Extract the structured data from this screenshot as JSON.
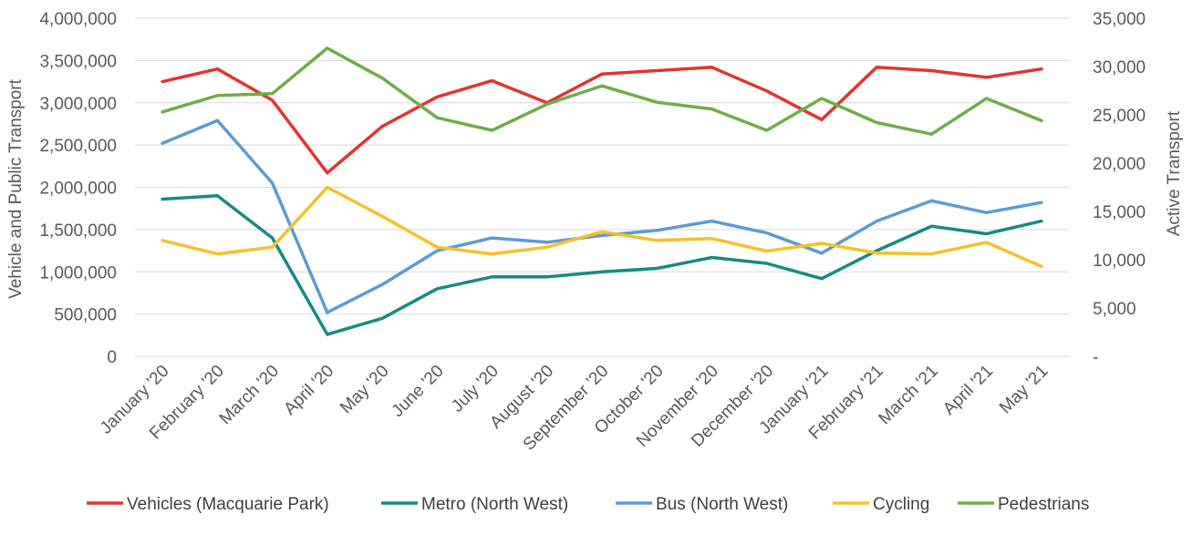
{
  "chart_data": {
    "type": "line",
    "categories": [
      "January '20",
      "February '20",
      "March '20",
      "April '20",
      "May '20",
      "June '20",
      "July '20",
      "August '20",
      "September '20",
      "October '20",
      "November '20",
      "December '20",
      "January '21",
      "February '21",
      "March '21",
      "April '21",
      "May '21"
    ],
    "ylabel": "Vehicle and Public Transport",
    "y2label": "Active Transport",
    "ylim": [
      0,
      4000000
    ],
    "y2lim": [
      0,
      35000
    ],
    "yticks": [
      {
        "value": 0,
        "label": "0"
      },
      {
        "value": 500000,
        "label": "500,000"
      },
      {
        "value": 1000000,
        "label": "1,000,000"
      },
      {
        "value": 1500000,
        "label": "1,500,000"
      },
      {
        "value": 2000000,
        "label": "2,000,000"
      },
      {
        "value": 2500000,
        "label": "2,500,000"
      },
      {
        "value": 3000000,
        "label": "3,000,000"
      },
      {
        "value": 3500000,
        "label": "3,500,000"
      },
      {
        "value": 4000000,
        "label": "4,000,000"
      }
    ],
    "y2ticks": [
      {
        "value": 0,
        "label": "-"
      },
      {
        "value": 5000,
        "label": "5,000"
      },
      {
        "value": 10000,
        "label": "10,000"
      },
      {
        "value": 15000,
        "label": "15,000"
      },
      {
        "value": 20000,
        "label": "20,000"
      },
      {
        "value": 25000,
        "label": "25,000"
      },
      {
        "value": 30000,
        "label": "30,000"
      },
      {
        "value": 35000,
        "label": "35,000"
      }
    ],
    "grid": "horizontal",
    "legend": "bottom",
    "series": [
      {
        "name": "Vehicles (Macquarie Park)",
        "axis": "left",
        "color": "#e03530",
        "values": [
          3250000,
          3400000,
          3030000,
          2170000,
          2720000,
          3070000,
          3260000,
          3000000,
          3340000,
          3380000,
          3420000,
          3140000,
          2800000,
          3420000,
          3380000,
          3300000,
          3400000
        ]
      },
      {
        "name": "Metro (North West)",
        "axis": "left",
        "color": "#168b84",
        "values": [
          1860000,
          1900000,
          1400000,
          260000,
          450000,
          800000,
          940000,
          940000,
          1000000,
          1040000,
          1170000,
          1100000,
          920000,
          1250000,
          1540000,
          1450000,
          1600000
        ]
      },
      {
        "name": "Bus (North West)",
        "axis": "left",
        "color": "#5b9bd5",
        "values": [
          2520000,
          2790000,
          2050000,
          520000,
          850000,
          1250000,
          1400000,
          1350000,
          1430000,
          1490000,
          1600000,
          1460000,
          1220000,
          1600000,
          1840000,
          1700000,
          1820000
        ]
      },
      {
        "name": "Cycling",
        "axis": "right",
        "color": "#f5c02c",
        "values": [
          12000,
          10600,
          11300,
          17500,
          14500,
          11300,
          10600,
          11300,
          12900,
          12000,
          12200,
          10900,
          11700,
          10700,
          10600,
          11800,
          9300
        ]
      },
      {
        "name": "Pedestrians",
        "axis": "right",
        "color": "#70ad47",
        "values": [
          25300,
          27000,
          27200,
          31900,
          28800,
          24700,
          23400,
          26100,
          28000,
          26300,
          25600,
          23400,
          26700,
          24200,
          23000,
          26700,
          24400
        ]
      }
    ]
  }
}
